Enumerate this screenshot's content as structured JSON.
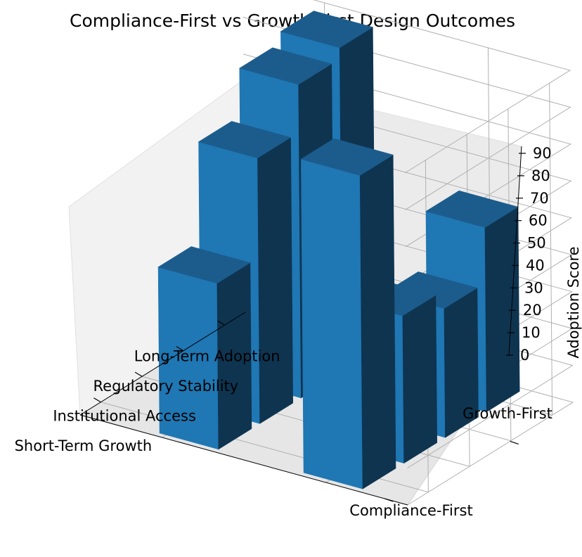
{
  "chart_data": {
    "type": "bar3d",
    "title": "Compliance-First vs Growth-First Design Outcomes",
    "categories": [
      "Short-Term Growth",
      "Institutional Access",
      "Regulatory Stability",
      "Long-Term Adoption"
    ],
    "groups": [
      "Compliance-First",
      "Growth-First"
    ],
    "series": [
      {
        "name": "Compliance-First",
        "values": [
          45,
          72,
          85,
          88
        ]
      },
      {
        "name": "Growth-First",
        "values": [
          85,
          40,
          35,
          50
        ]
      }
    ],
    "zlabel": "Adoption Score",
    "zticks": [
      0,
      10,
      20,
      30,
      40,
      50,
      60,
      70,
      80,
      90
    ],
    "zlim": [
      0,
      90
    ],
    "color": "#1f77b4"
  }
}
